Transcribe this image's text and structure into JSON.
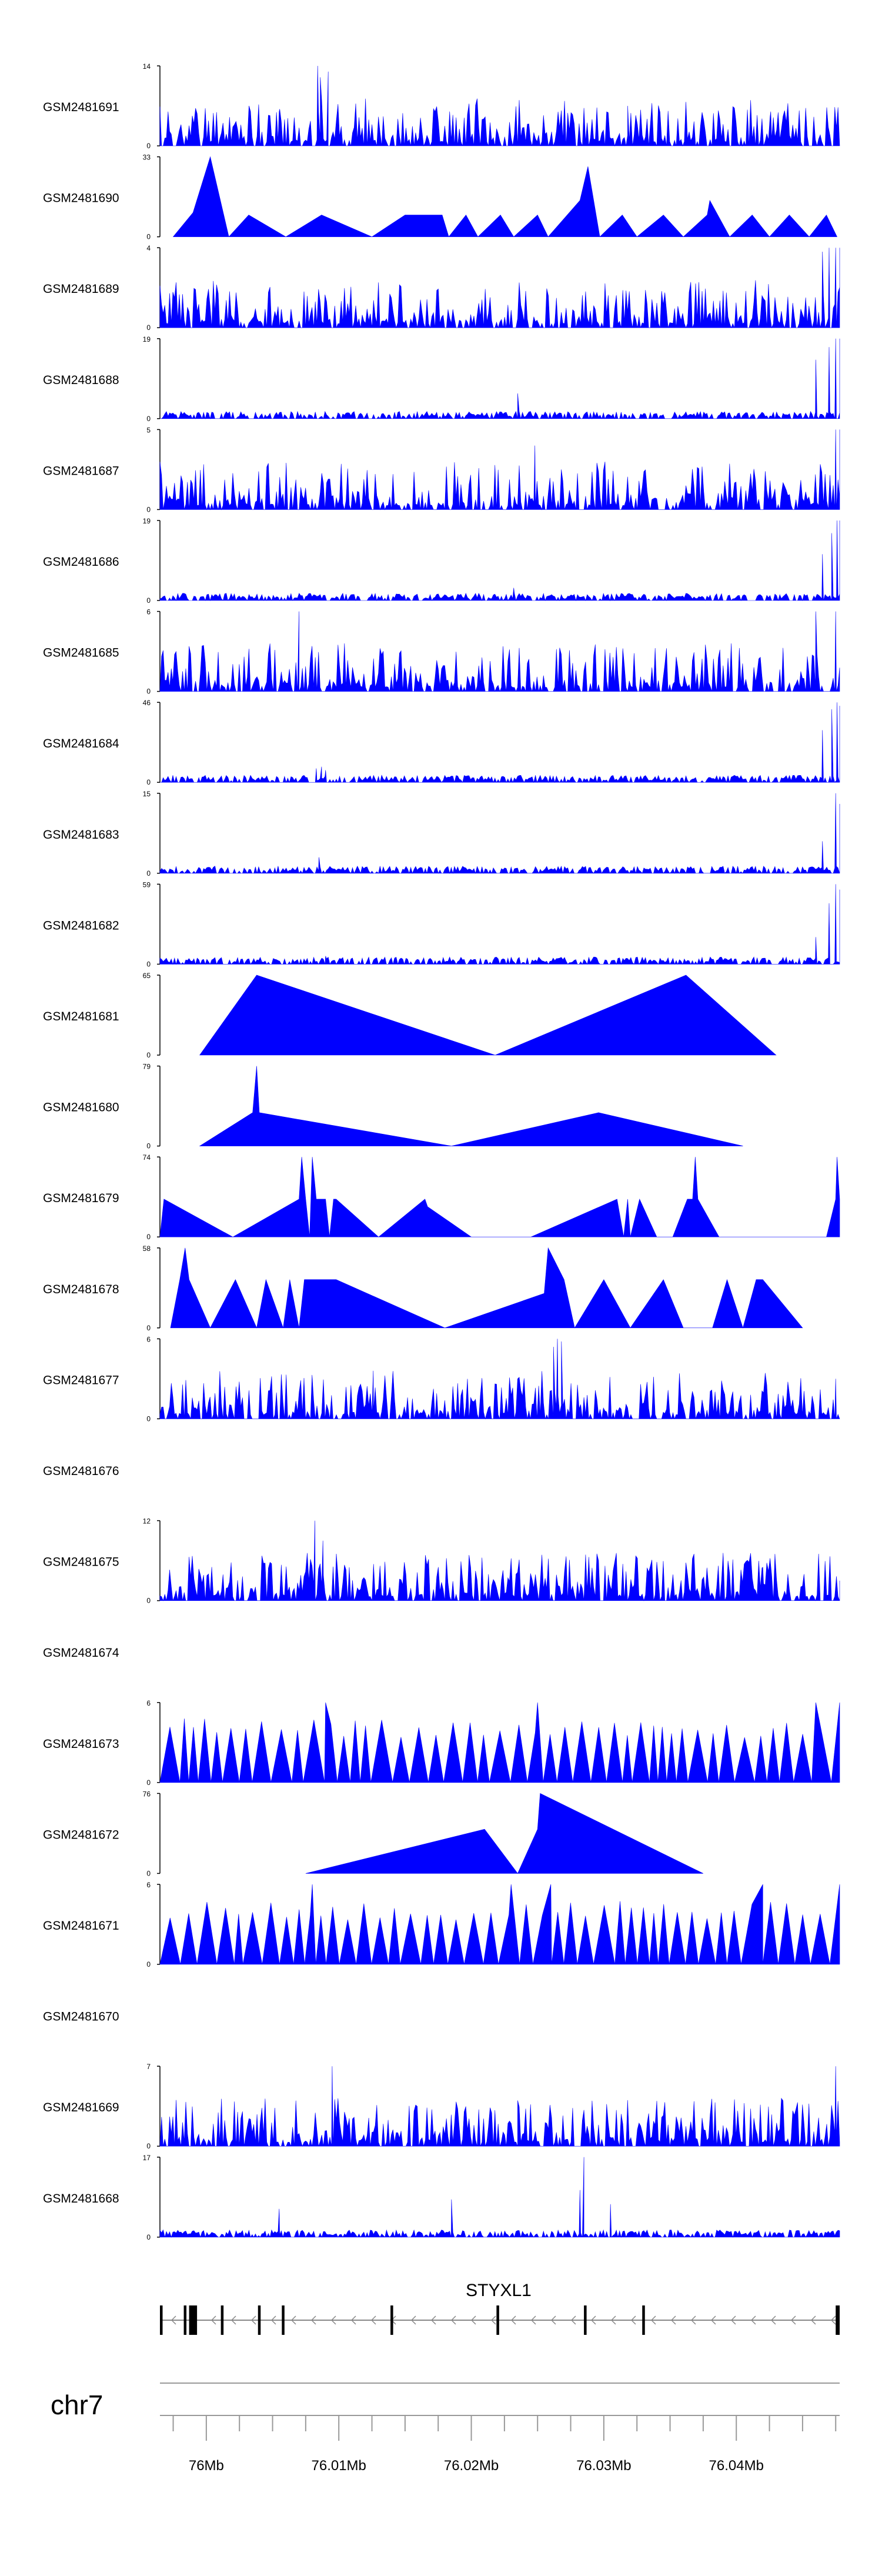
{
  "chart_data": {
    "type": "area",
    "description_label": "Coverage tracks for GEO samples across the STYXL1 locus",
    "chromosome": "chr7",
    "xlim": [
      75.9965,
      76.0478
    ],
    "x_unit": "Mb",
    "x_ticks": [
      {
        "value": 76.0,
        "label": "76Mb"
      },
      {
        "value": 76.01,
        "label": "76.01Mb"
      },
      {
        "value": 76.02,
        "label": "76.02Mb"
      },
      {
        "value": 76.03,
        "label": "76.03Mb"
      },
      {
        "value": 76.04,
        "label": "76.04Mb"
      }
    ],
    "gene": {
      "name": "STYXL1",
      "strand": "-",
      "start": 75.9965,
      "end": 76.0478,
      "exons": [
        [
          75.9965,
          75.9967
        ],
        [
          75.9983,
          75.9985
        ],
        [
          75.9987,
          75.9993
        ],
        [
          76.0011,
          76.0013
        ],
        [
          76.0039,
          76.0041
        ],
        [
          76.0057,
          76.0059
        ],
        [
          76.0139,
          76.0141
        ],
        [
          76.0219,
          76.0221
        ],
        [
          76.0285,
          76.0287
        ],
        [
          76.0329,
          76.0331
        ],
        [
          76.0475,
          76.0478
        ]
      ]
    },
    "tracks": [
      {
        "name": "GSM2481691",
        "ymax": 14,
        "mode": "dense",
        "seed": 11,
        "peaks": [
          [
            76.0084,
            14
          ],
          [
            76.0092,
            13
          ],
          [
            76.0086,
            12
          ],
          [
            76.0426,
            6
          ],
          [
            76.0055,
            6
          ],
          [
            76.0318,
            7
          ]
        ]
      },
      {
        "name": "GSM2481690",
        "ymax": 33,
        "mode": "sparse",
        "points": [
          [
            75.9975,
            0
          ],
          [
            75.999,
            10
          ],
          [
            76.0003,
            33
          ],
          [
            76.0017,
            0
          ],
          [
            76.0032,
            9
          ],
          [
            76.006,
            0
          ],
          [
            76.0087,
            9
          ],
          [
            76.0125,
            0
          ],
          [
            76.015,
            9
          ],
          [
            76.0178,
            9
          ],
          [
            76.0183,
            0
          ],
          [
            76.0196,
            9
          ],
          [
            76.0205,
            0
          ],
          [
            76.0222,
            9
          ],
          [
            76.0232,
            0
          ],
          [
            76.025,
            9
          ],
          [
            76.0258,
            0
          ],
          [
            76.0282,
            15
          ],
          [
            76.0288,
            29
          ],
          [
            76.0297,
            0
          ],
          [
            76.0314,
            9
          ],
          [
            76.0325,
            0
          ],
          [
            76.0345,
            9
          ],
          [
            76.036,
            0
          ],
          [
            76.0378,
            9
          ],
          [
            76.038,
            15
          ],
          [
            76.0395,
            0
          ],
          [
            76.0412,
            9
          ],
          [
            76.0425,
            0
          ],
          [
            76.044,
            9
          ],
          [
            76.0455,
            0
          ],
          [
            76.0468,
            9
          ],
          [
            76.0476,
            0
          ]
        ]
      },
      {
        "name": "GSM2481689",
        "ymax": 4,
        "mode": "dense",
        "seed": 23,
        "peaks": [
          [
            76.047,
            4
          ],
          [
            76.0465,
            3.8
          ],
          [
            76.0475,
            4
          ],
          [
            76.0478,
            4
          ]
        ]
      },
      {
        "name": "GSM2481688",
        "ymax": 19,
        "mode": "dense_low",
        "seed": 31,
        "peaks": [
          [
            76.0235,
            6
          ],
          [
            76.046,
            14
          ],
          [
            76.047,
            17
          ],
          [
            76.0475,
            19
          ],
          [
            76.0478,
            19
          ]
        ]
      },
      {
        "name": "GSM2481687",
        "ymax": 5,
        "mode": "dense",
        "seed": 47,
        "peaks": [
          [
            76.0475,
            5
          ],
          [
            76.0478,
            5
          ],
          [
            76.0248,
            4
          ]
        ]
      },
      {
        "name": "GSM2481686",
        "ymax": 19,
        "mode": "dense_low",
        "seed": 53,
        "peaks": [
          [
            76.0232,
            3
          ],
          [
            76.0465,
            11
          ],
          [
            76.0472,
            16
          ],
          [
            76.0476,
            19
          ],
          [
            76.0478,
            19
          ]
        ]
      },
      {
        "name": "GSM2481685",
        "ymax": 6,
        "mode": "dense",
        "seed": 61,
        "peaks": [
          [
            76.007,
            6
          ],
          [
            76.046,
            6
          ],
          [
            76.0475,
            6
          ]
        ]
      },
      {
        "name": "GSM2481684",
        "ymax": 46,
        "mode": "dense_low",
        "seed": 71,
        "peaks": [
          [
            76.0083,
            8
          ],
          [
            76.0087,
            9
          ],
          [
            76.009,
            7
          ],
          [
            76.0465,
            30
          ],
          [
            76.0472,
            42
          ],
          [
            76.0476,
            46
          ],
          [
            76.0478,
            44
          ]
        ]
      },
      {
        "name": "GSM2481683",
        "ymax": 15,
        "mode": "dense_low",
        "seed": 83,
        "peaks": [
          [
            76.0085,
            3
          ],
          [
            76.0465,
            6
          ],
          [
            76.0475,
            15
          ],
          [
            76.0478,
            13
          ]
        ]
      },
      {
        "name": "GSM2481682",
        "ymax": 59,
        "mode": "dense_low",
        "seed": 97,
        "peaks": [
          [
            76.009,
            6
          ],
          [
            76.046,
            20
          ],
          [
            76.047,
            45
          ],
          [
            76.0475,
            59
          ],
          [
            76.0478,
            55
          ]
        ]
      },
      {
        "name": "GSM2481681",
        "ymax": 65,
        "mode": "sparse",
        "points": [
          [
            75.9995,
            0
          ],
          [
            76.0038,
            65
          ],
          [
            76.0218,
            0
          ],
          [
            76.0362,
            65
          ],
          [
            76.043,
            0
          ]
        ]
      },
      {
        "name": "GSM2481680",
        "ymax": 79,
        "mode": "sparse",
        "points": [
          [
            75.9995,
            0
          ],
          [
            76.0035,
            33
          ],
          [
            76.0038,
            79
          ],
          [
            76.004,
            33
          ],
          [
            76.0185,
            0
          ],
          [
            76.0296,
            33
          ],
          [
            76.0405,
            0
          ]
        ]
      },
      {
        "name": "GSM2481679",
        "ymax": 74,
        "mode": "sparse",
        "points": [
          [
            75.9965,
            0
          ],
          [
            75.9968,
            35
          ],
          [
            76.002,
            0
          ],
          [
            76.007,
            35
          ],
          [
            76.0072,
            74
          ],
          [
            76.0075,
            35
          ],
          [
            76.0078,
            0
          ],
          [
            76.008,
            74
          ],
          [
            76.0083,
            35
          ],
          [
            76.009,
            35
          ],
          [
            76.0093,
            0
          ],
          [
            76.0096,
            35
          ],
          [
            76.0098,
            35
          ],
          [
            76.013,
            0
          ],
          [
            76.0165,
            35
          ],
          [
            76.0165,
            35
          ],
          [
            76.0167,
            28
          ],
          [
            76.02,
            0
          ],
          [
            76.0245,
            0
          ],
          [
            76.031,
            35
          ],
          [
            76.0315,
            0
          ],
          [
            76.0318,
            35
          ],
          [
            76.032,
            0
          ],
          [
            76.0327,
            35
          ],
          [
            76.034,
            0
          ],
          [
            76.0352,
            0
          ],
          [
            76.0363,
            35
          ],
          [
            76.0367,
            35
          ],
          [
            76.0369,
            74
          ],
          [
            76.0371,
            35
          ],
          [
            76.0387,
            0
          ],
          [
            76.039,
            0
          ],
          [
            76.0468,
            0
          ],
          [
            76.0475,
            35
          ],
          [
            76.0476,
            74
          ],
          [
            76.0478,
            35
          ]
        ]
      },
      {
        "name": "GSM2481678",
        "ymax": 58,
        "mode": "sparse",
        "points": [
          [
            75.9973,
            0
          ],
          [
            75.998,
            35
          ],
          [
            75.9984,
            58
          ],
          [
            75.9987,
            35
          ],
          [
            76.0003,
            0
          ],
          [
            76.0022,
            35
          ],
          [
            76.0038,
            0
          ],
          [
            76.0045,
            35
          ],
          [
            76.0058,
            0
          ],
          [
            76.0063,
            35
          ],
          [
            76.007,
            0
          ],
          [
            76.0074,
            35
          ],
          [
            76.0076,
            35
          ],
          [
            76.0098,
            35
          ],
          [
            76.018,
            0
          ],
          [
            76.0255,
            25
          ],
          [
            76.0258,
            58
          ],
          [
            76.027,
            35
          ],
          [
            76.0278,
            0
          ],
          [
            76.03,
            35
          ],
          [
            76.032,
            0
          ],
          [
            76.0345,
            35
          ],
          [
            76.036,
            0
          ],
          [
            76.0382,
            0
          ],
          [
            76.0393,
            35
          ],
          [
            76.0405,
            0
          ],
          [
            76.0415,
            35
          ],
          [
            76.042,
            35
          ],
          [
            76.045,
            0
          ]
        ]
      },
      {
        "name": "GSM2481677",
        "ymax": 6,
        "mode": "dense",
        "seed": 101,
        "peaks": [
          [
            76.0126,
            3.6
          ],
          [
            76.0265,
            6
          ],
          [
            76.0262,
            5.4
          ],
          [
            76.0268,
            5.8
          ],
          [
            76.0475,
            3
          ]
        ]
      },
      {
        "name": "GSM2481676",
        "ymax": null,
        "mode": "empty"
      },
      {
        "name": "GSM2481675",
        "ymax": 12,
        "mode": "dense",
        "seed": 113,
        "peaks": [
          [
            76.0082,
            12
          ],
          [
            76.0088,
            9
          ],
          [
            76.0135,
            5
          ],
          [
            76.042,
            5
          ],
          [
            76.0478,
            3
          ]
        ]
      },
      {
        "name": "GSM2481674",
        "ymax": null,
        "mode": "empty"
      },
      {
        "name": "GSM2481673",
        "ymax": 6,
        "mode": "triangles",
        "seed": 127,
        "peaks": [
          [
            76.009,
            6
          ],
          [
            76.025,
            6
          ],
          [
            76.046,
            6
          ],
          [
            76.0478,
            6
          ]
        ]
      },
      {
        "name": "GSM2481672",
        "ymax": 76,
        "mode": "sparse",
        "points": [
          [
            76.0075,
            0
          ],
          [
            76.021,
            42
          ],
          [
            76.0235,
            0
          ],
          [
            76.025,
            42
          ],
          [
            76.0252,
            76
          ],
          [
            76.0375,
            0
          ]
        ]
      },
      {
        "name": "GSM2481671",
        "ymax": 6,
        "mode": "triangles",
        "seed": 139,
        "peaks": [
          [
            76.008,
            6
          ],
          [
            76.023,
            6
          ],
          [
            76.026,
            6
          ],
          [
            76.042,
            6
          ],
          [
            76.0478,
            6
          ]
        ]
      },
      {
        "name": "GSM2481670",
        "ymax": null,
        "mode": "empty"
      },
      {
        "name": "GSM2481669",
        "ymax": 7,
        "mode": "dense",
        "seed": 149,
        "peaks": [
          [
            76.0095,
            7
          ],
          [
            76.0235,
            4
          ],
          [
            76.0475,
            7
          ]
        ]
      },
      {
        "name": "GSM2481668",
        "ymax": 17,
        "mode": "dense_low",
        "seed": 157,
        "peaks": [
          [
            76.0055,
            6
          ],
          [
            76.0185,
            8
          ],
          [
            76.0285,
            17
          ],
          [
            76.0282,
            10
          ],
          [
            76.0305,
            7
          ]
        ]
      }
    ]
  }
}
